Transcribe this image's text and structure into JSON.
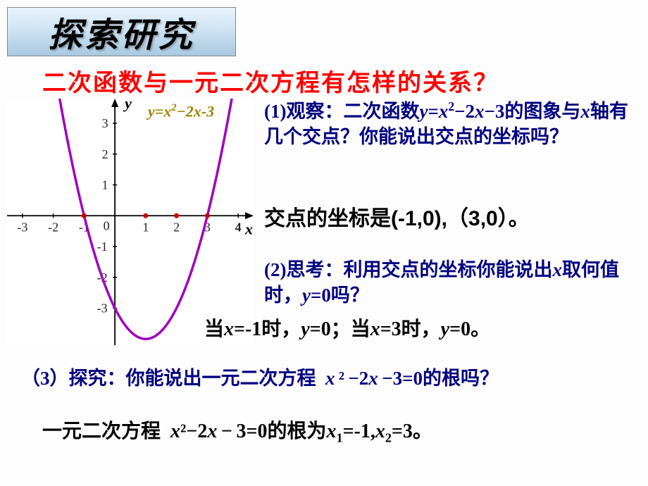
{
  "header": "探索研究",
  "title": "二次函数与一元二次方程有怎样的关系？",
  "chart": {
    "type": "line",
    "function_label_html": "<span class='it'>y</span>=<span class='it'>x</span><span class='sup'>2</span>−2<span class='it'>x</span>-3",
    "curve_color": "#a000c0",
    "curve_width": 3.5,
    "axis_color": "#000000",
    "background_color": "#ffffff",
    "grid_on": false,
    "xlim": [
      -3.5,
      4.5
    ],
    "ylim": [
      -4.2,
      3.8
    ],
    "xticks": [
      -3,
      -2,
      -1,
      0,
      1,
      2,
      3,
      4
    ],
    "yticks": [
      -3,
      -2,
      -1,
      1,
      2,
      3
    ],
    "tick_fontsize": 18,
    "marker_points": [
      [
        -1,
        0
      ],
      [
        1,
        0
      ],
      [
        2,
        0
      ],
      [
        3,
        0
      ]
    ],
    "marker_color": "#d00000",
    "marker_size": 3.5,
    "xlabel": "x",
    "ylabel": "y",
    "label_fontsize": 22,
    "label_style": "italic bold"
  },
  "q1_html": "(1)观察：二次函数<span class='it'>y</span>=<span class='it'>x</span><span class='sup'>2</span>−2<span class='it'>x</span>−3的图象与<span class='it'>x</span>轴有几个交点？你能说出交点的坐标吗？",
  "a1_html": "交点的坐标是(-1,0),（3,0）。",
  "q2_html": "(2)思考：利用交点的坐标你能说出<span class='it'>x</span>取何值时，<span class='it'>y</span>=0吗？",
  "a2_html": "当<span class='it'>x</span>=-1时，<span class='it'>y</span>=0；当<span class='it'>x</span>=3时，<span class='it'>y</span>=0。",
  "q3_html": "（3）探究：你能说出一元二次方程 &nbsp;<span class='it'>x</span>&thinsp;²&thinsp;−2<span class='it'>x</span>&thinsp;−3=0的根吗？",
  "a3_html": "一元二次方程 &nbsp;<span class='it'>x</span>²−2<span class='it'>x</span>&thinsp;−&thinsp;3=0的根为<span class='it'>x</span><span class='sub'>1</span>=-1,<span class='it'>x</span><span class='sub'>2</span>=3。"
}
